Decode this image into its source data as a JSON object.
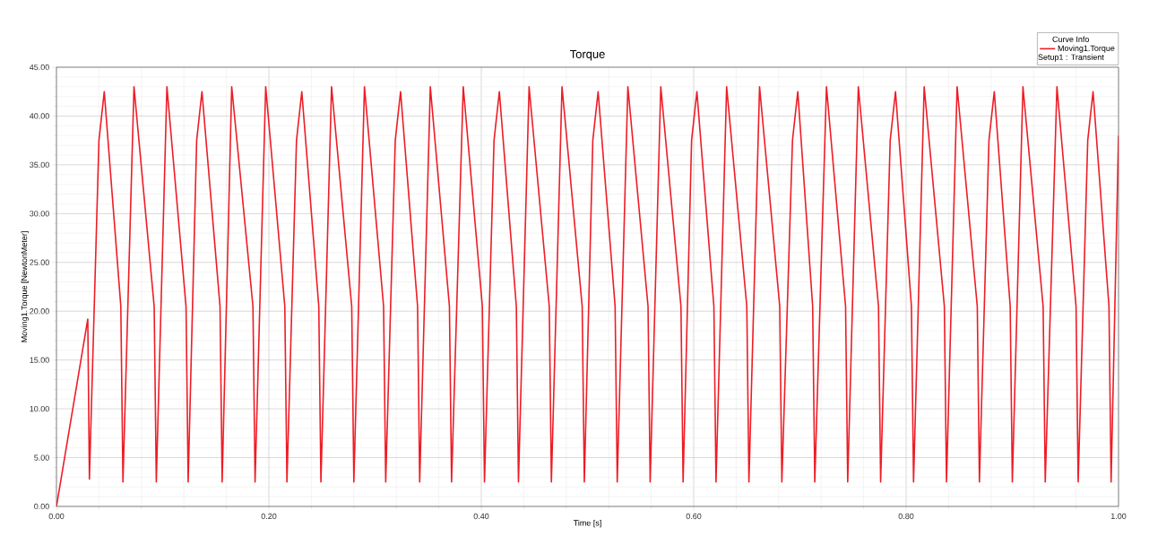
{
  "chart_data": {
    "type": "line",
    "title": "Torque",
    "xlabel": "Time [s]",
    "ylabel": "Moving1.Torque [NewtonMeter]",
    "legend_title": "Curve Info",
    "annotations": [
      "Setup1 : Transient"
    ],
    "xlim": [
      0,
      1
    ],
    "ylim": [
      0,
      45
    ],
    "xticks": [
      {
        "value": 0,
        "label": "0.00"
      },
      {
        "value": 0.2,
        "label": "0.20"
      },
      {
        "value": 0.4,
        "label": "0.40"
      },
      {
        "value": 0.6,
        "label": "0.60"
      },
      {
        "value": 0.8,
        "label": "0.80"
      },
      {
        "value": 1,
        "label": "1.00"
      }
    ],
    "yticks": [
      {
        "value": 0,
        "label": "0.00"
      },
      {
        "value": 5,
        "label": "5.00"
      },
      {
        "value": 10,
        "label": "10.00"
      },
      {
        "value": 15,
        "label": "15.00"
      },
      {
        "value": 20,
        "label": "20.00"
      },
      {
        "value": 25,
        "label": "25.00"
      },
      {
        "value": 30,
        "label": "30.00"
      },
      {
        "value": 35,
        "label": "35.00"
      },
      {
        "value": 40,
        "label": "40.00"
      },
      {
        "value": 45,
        "label": "45.00"
      }
    ],
    "grid": true,
    "legend": "top right",
    "marker": "none",
    "line_style": "solid",
    "series": [
      {
        "name": "Moving1.Torque",
        "color": "#ee1c25",
        "x": [
          0,
          0.0295,
          0.031,
          0.04,
          0.045,
          0.0606,
          0.0626,
          0.073,
          0.092,
          0.094,
          0.104,
          0.122,
          0.124,
          0.132,
          0.137,
          0.154,
          0.156,
          0.165,
          0.185,
          0.187,
          0.197,
          0.215,
          0.217,
          0.226,
          0.231,
          0.247,
          0.249,
          0.259,
          0.278,
          0.28,
          0.29,
          0.308,
          0.31,
          0.319,
          0.324,
          0.34,
          0.342,
          0.352,
          0.37,
          0.372,
          0.383,
          0.401,
          0.403,
          0.412,
          0.417,
          0.433,
          0.435,
          0.445,
          0.464,
          0.466,
          0.476,
          0.495,
          0.497,
          0.505,
          0.51,
          0.526,
          0.528,
          0.538,
          0.557,
          0.559,
          0.569,
          0.588,
          0.59,
          0.598,
          0.603,
          0.619,
          0.621,
          0.631,
          0.65,
          0.652,
          0.662,
          0.681,
          0.683,
          0.693,
          0.698,
          0.712,
          0.714,
          0.725,
          0.743,
          0.745,
          0.755,
          0.774,
          0.776,
          0.785,
          0.79,
          0.805,
          0.807,
          0.817,
          0.836,
          0.838,
          0.848,
          0.867,
          0.869,
          0.878,
          0.883,
          0.898,
          0.9,
          0.91,
          0.929,
          0.931,
          0.942,
          0.96,
          0.962,
          0.971,
          0.976,
          0.991,
          0.993,
          1.0
        ],
        "values": [
          0,
          19.2,
          2.8,
          37.5,
          42.5,
          20.5,
          2.5,
          43,
          20.5,
          2.5,
          43,
          20.5,
          2.5,
          37.5,
          42.5,
          20.5,
          2.5,
          43,
          20.5,
          2.5,
          43,
          20.5,
          2.5,
          37.5,
          42.5,
          20.5,
          2.5,
          43,
          20.5,
          2.5,
          43,
          20.5,
          2.5,
          37.5,
          42.5,
          20.5,
          2.5,
          43,
          20.5,
          2.5,
          43,
          20.5,
          2.5,
          37.5,
          42.5,
          20.5,
          2.5,
          43,
          20.5,
          2.5,
          43,
          20.5,
          2.5,
          37.5,
          42.5,
          20.5,
          2.5,
          43,
          20.5,
          2.5,
          43,
          20.5,
          2.5,
          37.5,
          42.5,
          20.5,
          2.5,
          43,
          20.5,
          2.5,
          43,
          20.5,
          2.5,
          37.5,
          42.5,
          20.5,
          2.5,
          43,
          20.5,
          2.5,
          43,
          20.5,
          2.5,
          37.5,
          42.5,
          20.5,
          2.5,
          43,
          20.5,
          2.5,
          43,
          20.5,
          2.5,
          37.5,
          42.5,
          20.5,
          2.5,
          43,
          20.5,
          2.5,
          43,
          20.5,
          2.5,
          37.5,
          42.5,
          20.5,
          2.5,
          38
        ]
      }
    ]
  }
}
